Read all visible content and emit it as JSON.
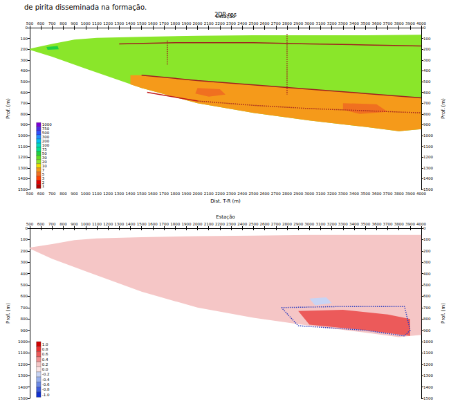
{
  "chart_data": [
    {
      "type": "section",
      "annotation": "de pirita disseminada na formação.",
      "title": "2DR-res",
      "xlabel_top": "Estação",
      "xlabel_bottom": "Dist. T-R (m)",
      "ylabel": "Prof. (m)",
      "xlim": [
        500,
        4000
      ],
      "xticks": [
        500,
        600,
        700,
        800,
        900,
        1000,
        1100,
        1200,
        1300,
        1400,
        1500,
        1600,
        1700,
        1800,
        1900,
        2000,
        2100,
        2200,
        2300,
        2400,
        2500,
        2600,
        2700,
        2800,
        2900,
        3000,
        3100,
        3200,
        3300,
        3400,
        3500,
        3600,
        3700,
        3800,
        3900,
        4000
      ],
      "ylim": [
        0,
        1500
      ],
      "yticks": [
        0,
        100,
        200,
        300,
        400,
        500,
        600,
        700,
        800,
        900,
        1000,
        1100,
        1200,
        1300,
        1400,
        1500
      ],
      "colorbar": {
        "ticks": [
          1000,
          750,
          500,
          300,
          200,
          100,
          75,
          50,
          30,
          20,
          10,
          7,
          5,
          3,
          2,
          1
        ],
        "colors": [
          "#7b00d4",
          "#4b2ee0",
          "#3050ff",
          "#2090ff",
          "#00c0f0",
          "#00d8c0",
          "#00e090",
          "#20d040",
          "#60dc20",
          "#8ae62a",
          "#f0e000",
          "#f59a1a",
          "#f07020",
          "#ff4000",
          "#e00000",
          "#b00000"
        ]
      },
      "zones": [
        {
          "value": 20,
          "points": [
            [
              500,
              195
            ],
            [
              700,
              150
            ],
            [
              900,
              110
            ],
            [
              1100,
              95
            ],
            [
              1500,
              85
            ],
            [
              2000,
              75
            ],
            [
              2500,
              70
            ],
            [
              3000,
              70
            ],
            [
              3500,
              70
            ],
            [
              4000,
              65
            ],
            [
              4000,
              940
            ],
            [
              3800,
              960
            ],
            [
              3500,
              920
            ],
            [
              3000,
              860
            ],
            [
              2500,
              790
            ],
            [
              2000,
              700
            ],
            [
              1500,
              560
            ],
            [
              1000,
              380
            ],
            [
              700,
              270
            ],
            [
              500,
              205
            ]
          ]
        },
        {
          "value": 7,
          "points": [
            [
              1400,
              440
            ],
            [
              1500,
              440
            ],
            [
              2000,
              490
            ],
            [
              2500,
              530
            ],
            [
              3000,
              570
            ],
            [
              3500,
              610
            ],
            [
              4000,
              650
            ],
            [
              4000,
              940
            ],
            [
              3800,
              960
            ],
            [
              3500,
              920
            ],
            [
              3000,
              860
            ],
            [
              2500,
              790
            ],
            [
              2000,
              700
            ],
            [
              1500,
              560
            ],
            [
              1400,
              525
            ]
          ]
        },
        {
          "value": 5,
          "points": [
            [
              2000,
              560
            ],
            [
              2200,
              570
            ],
            [
              2250,
              620
            ],
            [
              2100,
              640
            ],
            [
              1980,
              610
            ]
          ]
        },
        {
          "value": 5,
          "points": [
            [
              3300,
              700
            ],
            [
              3600,
              710
            ],
            [
              3700,
              780
            ],
            [
              3450,
              800
            ],
            [
              3300,
              760
            ]
          ]
        },
        {
          "value": 50,
          "points": [
            [
              650,
              180
            ],
            [
              750,
              170
            ],
            [
              760,
              200
            ],
            [
              660,
              205
            ]
          ]
        }
      ],
      "lines": [
        {
          "color": "#a02020",
          "line_style": "solid",
          "points": [
            [
              1300,
              150
            ],
            [
              1800,
              140
            ],
            [
              2500,
              140
            ],
            [
              3000,
              150
            ],
            [
              3500,
              160
            ],
            [
              4000,
              170
            ]
          ]
        },
        {
          "color": "#a02020",
          "line_style": "solid",
          "points": [
            [
              1500,
              440
            ],
            [
              2000,
              490
            ],
            [
              2500,
              530
            ],
            [
              3000,
              570
            ],
            [
              3500,
              610
            ],
            [
              4000,
              650
            ]
          ]
        },
        {
          "color": "#a02020",
          "line_style": "dotted",
          "points": [
            [
              2000,
              680
            ],
            [
              2500,
              720
            ],
            [
              3000,
              750
            ],
            [
              3500,
              770
            ],
            [
              4000,
              790
            ]
          ]
        },
        {
          "color": "#c01818",
          "line_style": "solid",
          "points": [
            [
              1550,
              600
            ],
            [
              2000,
              680
            ]
          ]
        },
        {
          "color": "#a02020",
          "line_style": "dotted",
          "points": [
            [
              1730,
              120
            ],
            [
              1730,
              350
            ]
          ]
        },
        {
          "color": "#a02020",
          "line_style": "dotted",
          "points": [
            [
              2800,
              60
            ],
            [
              2800,
              620
            ]
          ]
        }
      ]
    },
    {
      "type": "section",
      "xlabel_top": "Estação",
      "ylabel": "Prof. (m)",
      "xlim": [
        500,
        4000
      ],
      "xticks": [
        500,
        600,
        700,
        800,
        900,
        1000,
        1100,
        1200,
        1300,
        1400,
        1500,
        1600,
        1700,
        1800,
        1900,
        2000,
        2100,
        2200,
        2300,
        2400,
        2500,
        2600,
        2700,
        2800,
        2900,
        3000,
        3100,
        3200,
        3300,
        3400,
        3500,
        3600,
        3700,
        3800,
        3900,
        4000
      ],
      "ylim": [
        0,
        1500
      ],
      "yticks": [
        0,
        100,
        200,
        300,
        400,
        500,
        600,
        700,
        800,
        900,
        1000,
        1100,
        1200,
        1300,
        1400,
        1500
      ],
      "colorbar": {
        "ticks": [
          {
            "value": 1,
            "label": "1.0"
          },
          {
            "value": 0.8,
            "label": "0.8"
          },
          {
            "value": 0.6,
            "label": "0.6"
          },
          {
            "value": 0.4,
            "label": "0.4"
          },
          {
            "value": 0.2,
            "label": "0.2"
          },
          {
            "value": 0,
            "label": "0.0"
          },
          {
            "value": -0.2,
            "label": "-0.2"
          },
          {
            "value": -0.4,
            "label": "-0.4"
          },
          {
            "value": -0.6,
            "label": "-0.6"
          },
          {
            "value": -0.8,
            "label": "-0.8"
          },
          {
            "value": -1,
            "label": "-1.0"
          }
        ],
        "colors": [
          "#d00000",
          "#e83030",
          "#ec5a5a",
          "#f09090",
          "#f5c6c6",
          "#fbe4e4",
          "#c8d4f4",
          "#98b0ee",
          "#6a88e6",
          "#3c5cdc",
          "#1030d0"
        ]
      },
      "zones": [
        {
          "value": 0.2,
          "points": [
            [
              500,
              170
            ],
            [
              700,
              140
            ],
            [
              900,
              105
            ],
            [
              1100,
              90
            ],
            [
              1500,
              80
            ],
            [
              2000,
              70
            ],
            [
              2500,
              65
            ],
            [
              3000,
              60
            ],
            [
              3500,
              60
            ],
            [
              4000,
              60
            ],
            [
              4000,
              940
            ],
            [
              3800,
              960
            ],
            [
              3500,
              920
            ],
            [
              3000,
              860
            ],
            [
              2500,
              790
            ],
            [
              2000,
              700
            ],
            [
              1500,
              560
            ],
            [
              1000,
              380
            ],
            [
              700,
              270
            ],
            [
              500,
              180
            ]
          ]
        },
        {
          "value": 0.6,
          "points": [
            [
              2900,
              730
            ],
            [
              3300,
              720
            ],
            [
              3700,
              760
            ],
            [
              3900,
              800
            ],
            [
              3900,
              950
            ],
            [
              3500,
              900
            ],
            [
              3000,
              850
            ]
          ]
        },
        {
          "value": -0.2,
          "points": [
            [
              3000,
              620
            ],
            [
              3150,
              610
            ],
            [
              3200,
              660
            ],
            [
              3050,
              680
            ]
          ]
        }
      ],
      "lines": [
        {
          "color": "#3040c0",
          "line_style": "dotted",
          "points": [
            [
              2750,
              700
            ],
            [
              3300,
              690
            ],
            [
              3850,
              690
            ],
            [
              3900,
              900
            ],
            [
              3850,
              950
            ],
            [
              3500,
              900
            ],
            [
              2900,
              860
            ],
            [
              2750,
              700
            ]
          ]
        }
      ]
    }
  ]
}
